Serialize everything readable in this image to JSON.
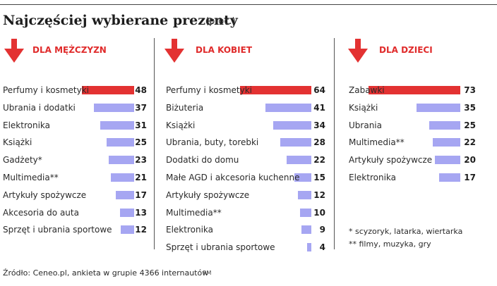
{
  "title": "Najczęściej wybierane prezenty",
  "unit": "(proc.)",
  "colors": {
    "highlight": "#e33232",
    "bar": "#a6a6f2",
    "header": "#e02b2b"
  },
  "chart_data": [
    {
      "type": "bar",
      "title": "DLA MĘŻCZYZN",
      "categories": [
        "Perfumy i kosmetyki",
        "Ubrania i dodatki",
        "Elektronika",
        "Książki",
        "Gadżety*",
        "Multimedia**",
        "Artykuły spożywcze",
        "Akcesoria do auta",
        "Sprzęt i ubrania sportowe"
      ],
      "values": [
        48,
        37,
        31,
        25,
        23,
        21,
        17,
        13,
        12
      ]
    },
    {
      "type": "bar",
      "title": "DLA KOBIET",
      "categories": [
        "Perfumy i kosmetyki",
        "Biżuteria",
        "Książki",
        "Ubrania, buty, torebki",
        "Dodatki do domu",
        "Małe AGD i akcesoria kuchenne",
        "Artykuły spożywcze",
        "Multimedia**",
        "Elektronika",
        "Sprzęt i ubrania sportowe"
      ],
      "values": [
        64,
        41,
        34,
        28,
        22,
        15,
        12,
        10,
        9,
        4
      ]
    },
    {
      "type": "bar",
      "title": "DLA DZIECI",
      "categories": [
        "Zabawki",
        "Książki",
        "Ubrania",
        "Multimedia**",
        "Artykuły spożywcze",
        "Elektronika"
      ],
      "values": [
        73,
        35,
        25,
        22,
        20,
        17
      ]
    }
  ],
  "notes": [
    "* scyzoryk, latarka, wiertarka",
    "** filmy, muzyka, gry"
  ],
  "source": "Źródło: Ceneo.pl, ankieta w grupie 4366 internautów",
  "initials": "RM"
}
